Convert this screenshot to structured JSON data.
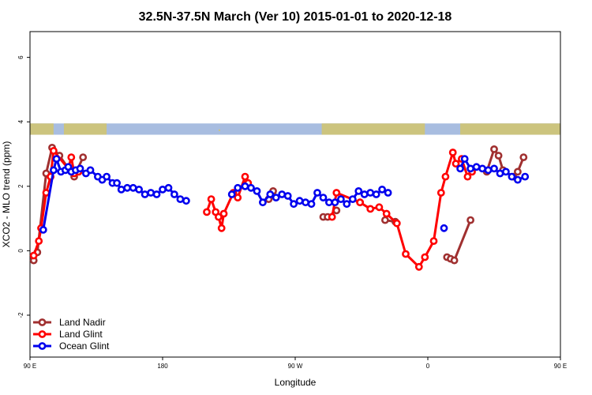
{
  "chart_data": {
    "type": "line",
    "title": "32.5N-37.5N March (Ver 10)   2015-01-01 to 2020-12-18",
    "xlabel": "Longitude",
    "ylabel": "XCO2 - MLO trend (ppm)",
    "xlim": [
      0,
      360
    ],
    "ylim": [
      -3.3,
      6.8
    ],
    "x_ticks": [
      {
        "value": 0,
        "label": "90 E"
      },
      {
        "value": 90,
        "label": "180"
      },
      {
        "value": 180,
        "label": "90 W"
      },
      {
        "value": 270,
        "label": "0"
      },
      {
        "value": 360,
        "label": "90 E"
      }
    ],
    "y_ticks": [
      {
        "value": -2,
        "label": "-2"
      },
      {
        "value": 0,
        "label": "0"
      },
      {
        "value": 2,
        "label": "2"
      },
      {
        "value": 4,
        "label": "4"
      },
      {
        "value": 6,
        "label": "6"
      }
    ],
    "grid": false,
    "legend_position": "bottom-left",
    "land_mask_band": {
      "y_range": [
        3.6,
        3.95
      ],
      "land_color": "#ccc47e",
      "ocean_color": "#a8bde0"
    },
    "series": [
      {
        "name": "Land Nadir",
        "color": "#a03030",
        "points": [
          [
            2.5,
            -0.3
          ],
          [
            5,
            -0.05
          ],
          [
            11,
            2.4
          ],
          [
            15,
            3.2
          ],
          [
            20,
            2.95
          ],
          [
            30,
            2.3
          ],
          [
            36,
            2.9
          ],
          [
            162,
            1.6
          ],
          [
            165,
            1.85
          ],
          [
            199,
            1.05
          ],
          [
            202,
            1.05
          ],
          [
            208,
            1.25
          ],
          [
            224,
            1.5
          ],
          [
            241,
            0.95
          ],
          [
            248,
            0.9
          ],
          [
            283,
            -0.2
          ],
          [
            285.5,
            -0.25
          ],
          [
            288,
            -0.3
          ],
          [
            299,
            0.95
          ],
          [
            310,
            2.45
          ],
          [
            315,
            3.15
          ],
          [
            318,
            2.95
          ],
          [
            321,
            2.5
          ],
          [
            328,
            2.3
          ],
          [
            331,
            2.45
          ],
          [
            335,
            2.9
          ]
        ],
        "segments": [
          [
            0,
            6
          ],
          [
            7,
            8
          ],
          [
            9,
            11
          ],
          [
            12,
            12
          ],
          [
            13,
            14
          ],
          [
            15,
            18
          ],
          [
            19,
            25
          ]
        ]
      },
      {
        "name": "Land Glint",
        "color": "#ff0000",
        "points": [
          [
            2.5,
            -0.15
          ],
          [
            6,
            0.3
          ],
          [
            7.5,
            0.7
          ],
          [
            11,
            1.8
          ],
          [
            14,
            2.3
          ],
          [
            16,
            3.1
          ],
          [
            26,
            2.55
          ],
          [
            28,
            2.9
          ],
          [
            30,
            2.4
          ],
          [
            33,
            2.45
          ],
          [
            120,
            1.2
          ],
          [
            123,
            1.6
          ],
          [
            126,
            1.2
          ],
          [
            128,
            1.05
          ],
          [
            130,
            0.7
          ],
          [
            131.5,
            1.15
          ],
          [
            138,
            1.8
          ],
          [
            141,
            1.65
          ],
          [
            146,
            2.3
          ],
          [
            148,
            2.1
          ],
          [
            205,
            1.05
          ],
          [
            208,
            1.8
          ],
          [
            224,
            1.5
          ],
          [
            231,
            1.3
          ],
          [
            237,
            1.35
          ],
          [
            242,
            1.15
          ],
          [
            249,
            0.85
          ],
          [
            255,
            -0.1
          ],
          [
            264,
            -0.5
          ],
          [
            268,
            -0.2
          ],
          [
            274,
            0.3
          ],
          [
            279,
            1.8
          ],
          [
            282,
            2.3
          ],
          [
            287,
            3.05
          ],
          [
            289,
            2.7
          ],
          [
            293,
            2.85
          ],
          [
            297,
            2.3
          ],
          [
            300,
            2.45
          ]
        ],
        "segments": [
          [
            0,
            9
          ],
          [
            10,
            19
          ],
          [
            20,
            37
          ]
        ]
      },
      {
        "name": "Ocean Glint",
        "color": "#0000ee",
        "points": [
          [
            9,
            0.65
          ],
          [
            16,
            2.5
          ],
          [
            18,
            2.85
          ],
          [
            21,
            2.45
          ],
          [
            24,
            2.5
          ],
          [
            26,
            2.6
          ],
          [
            28,
            2.45
          ],
          [
            31,
            2.5
          ],
          [
            34,
            2.55
          ],
          [
            38,
            2.4
          ],
          [
            41,
            2.5
          ],
          [
            46,
            2.3
          ],
          [
            49,
            2.2
          ],
          [
            52,
            2.3
          ],
          [
            56,
            2.1
          ],
          [
            59,
            2.1
          ],
          [
            62,
            1.9
          ],
          [
            66,
            1.95
          ],
          [
            70,
            1.95
          ],
          [
            74,
            1.9
          ],
          [
            78,
            1.75
          ],
          [
            82,
            1.8
          ],
          [
            86,
            1.75
          ],
          [
            90,
            1.9
          ],
          [
            94,
            1.95
          ],
          [
            98,
            1.75
          ],
          [
            102,
            1.6
          ],
          [
            106,
            1.55
          ],
          [
            137,
            1.75
          ],
          [
            141,
            1.95
          ],
          [
            146,
            2.0
          ],
          [
            150,
            1.95
          ],
          [
            154,
            1.85
          ],
          [
            158,
            1.5
          ],
          [
            163,
            1.75
          ],
          [
            167,
            1.65
          ],
          [
            171,
            1.75
          ],
          [
            175,
            1.7
          ],
          [
            179,
            1.45
          ],
          [
            183,
            1.55
          ],
          [
            187,
            1.5
          ],
          [
            191,
            1.45
          ],
          [
            195,
            1.8
          ],
          [
            199,
            1.65
          ],
          [
            203,
            1.5
          ],
          [
            207,
            1.5
          ],
          [
            211,
            1.6
          ],
          [
            215,
            1.45
          ],
          [
            219,
            1.6
          ],
          [
            223,
            1.85
          ],
          [
            227,
            1.75
          ],
          [
            231,
            1.8
          ],
          [
            235,
            1.75
          ],
          [
            239,
            1.9
          ],
          [
            243,
            1.8
          ],
          [
            281,
            0.7
          ],
          [
            292,
            2.55
          ],
          [
            295,
            2.85
          ],
          [
            299,
            2.55
          ],
          [
            303,
            2.6
          ],
          [
            307,
            2.55
          ],
          [
            311,
            2.5
          ],
          [
            315,
            2.55
          ],
          [
            319,
            2.4
          ],
          [
            323,
            2.45
          ],
          [
            327,
            2.3
          ],
          [
            331,
            2.2
          ],
          [
            336,
            2.3
          ]
        ],
        "segments": [
          [
            0,
            27
          ],
          [
            28,
            54
          ],
          [
            55,
            55
          ],
          [
            56,
            67
          ]
        ]
      }
    ]
  }
}
